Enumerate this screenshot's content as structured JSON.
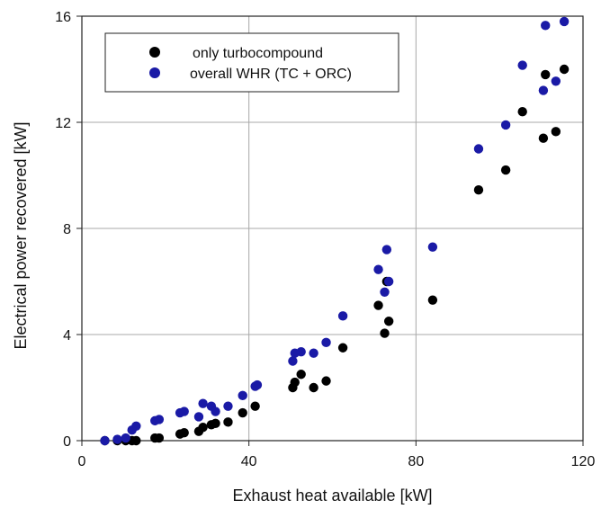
{
  "chart_data": {
    "type": "scatter",
    "title": "",
    "xlabel": "Exhaust heat available [kW]",
    "ylabel": "Electrical power recovered [kW]",
    "xlim": [
      0,
      120
    ],
    "ylim": [
      0,
      16
    ],
    "xticks": [
      0,
      40,
      80,
      120
    ],
    "yticks": [
      0,
      4,
      8,
      12,
      16
    ],
    "grid": true,
    "legend_position": "top-left",
    "series": [
      {
        "name": "only turbocompound",
        "color": "#000000",
        "points": [
          [
            5.5,
            0.0
          ],
          [
            8.5,
            0.0
          ],
          [
            10.5,
            0.0
          ],
          [
            12.0,
            0.0
          ],
          [
            13.0,
            0.0
          ],
          [
            17.5,
            0.1
          ],
          [
            18.5,
            0.1
          ],
          [
            23.5,
            0.25
          ],
          [
            24.5,
            0.3
          ],
          [
            28.0,
            0.35
          ],
          [
            29.0,
            0.5
          ],
          [
            31.0,
            0.6
          ],
          [
            32.0,
            0.65
          ],
          [
            35.0,
            0.7
          ],
          [
            38.5,
            1.05
          ],
          [
            41.5,
            1.3
          ],
          [
            50.5,
            2.0
          ],
          [
            51.0,
            2.2
          ],
          [
            52.5,
            2.5
          ],
          [
            55.5,
            2.0
          ],
          [
            58.5,
            2.25
          ],
          [
            62.5,
            3.5
          ],
          [
            71.0,
            5.1
          ],
          [
            72.5,
            4.05
          ],
          [
            73.5,
            4.5
          ],
          [
            73.0,
            6.0
          ],
          [
            84.0,
            5.3
          ],
          [
            95.0,
            9.45
          ],
          [
            101.5,
            10.2
          ],
          [
            105.5,
            12.4
          ],
          [
            110.5,
            11.4
          ],
          [
            111.0,
            13.8
          ],
          [
            113.5,
            11.65
          ],
          [
            115.5,
            14.0
          ]
        ]
      },
      {
        "name": "overall WHR (TC + ORC)",
        "color": "#1a1aa6",
        "points": [
          [
            5.5,
            0.0
          ],
          [
            8.5,
            0.05
          ],
          [
            10.5,
            0.1
          ],
          [
            12.0,
            0.4
          ],
          [
            13.0,
            0.55
          ],
          [
            17.5,
            0.75
          ],
          [
            18.5,
            0.8
          ],
          [
            23.5,
            1.05
          ],
          [
            24.5,
            1.1
          ],
          [
            28.0,
            0.9
          ],
          [
            29.0,
            1.4
          ],
          [
            31.0,
            1.3
          ],
          [
            32.0,
            1.1
          ],
          [
            35.0,
            1.3
          ],
          [
            38.5,
            1.7
          ],
          [
            41.5,
            2.05
          ],
          [
            42.0,
            2.1
          ],
          [
            50.5,
            3.0
          ],
          [
            51.0,
            3.3
          ],
          [
            52.5,
            3.35
          ],
          [
            55.5,
            3.3
          ],
          [
            58.5,
            3.7
          ],
          [
            62.5,
            4.7
          ],
          [
            71.0,
            6.45
          ],
          [
            72.5,
            5.6
          ],
          [
            73.5,
            6.0
          ],
          [
            73.0,
            7.2
          ],
          [
            84.0,
            7.3
          ],
          [
            95.0,
            11.0
          ],
          [
            101.5,
            11.9
          ],
          [
            105.5,
            14.15
          ],
          [
            110.5,
            13.2
          ],
          [
            111.0,
            15.65
          ],
          [
            113.5,
            13.55
          ],
          [
            115.5,
            15.8
          ]
        ]
      }
    ]
  }
}
